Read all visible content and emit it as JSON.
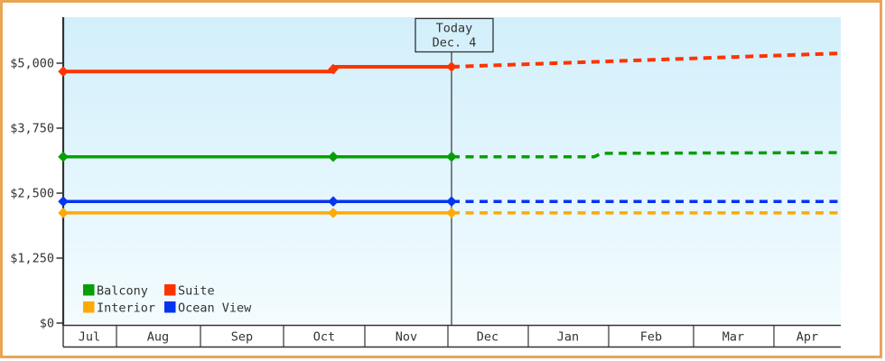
{
  "window": {
    "border_color": "#e9a455",
    "background_color": "#ffffff",
    "plot_gradient_top": "#d2effb",
    "plot_gradient_bottom": "#f3fcff"
  },
  "today_flag": {
    "line1": "Today",
    "line2": "Dec. 4"
  },
  "legend": {
    "items": [
      {
        "label": "Balcony",
        "color": "#079e07"
      },
      {
        "label": "Suite",
        "color": "#ff3300"
      },
      {
        "label": "Interior",
        "color": "#ffa907"
      },
      {
        "label": "Ocean View",
        "color": "#0535f0"
      }
    ]
  },
  "chart_data": {
    "type": "line",
    "title": "",
    "unit": "USD",
    "x_axis": {
      "labels": [
        "Jul",
        "Aug",
        "Sep",
        "Oct",
        "Nov",
        "Dec",
        "Jan",
        "Feb",
        "Mar",
        "Apr"
      ]
    },
    "y_axis": {
      "tick_labels": [
        "$0",
        "$1,250",
        "$2,500",
        "$3,750",
        "$5,000"
      ],
      "tick_values": [
        0,
        1250,
        2500,
        3750,
        5000
      ],
      "min": 0,
      "visible_max": 5890,
      "grid": false
    },
    "today": {
      "label": "Today",
      "date": "Dec. 4",
      "x": 500
    },
    "legend_position": "bottom-left-inside",
    "series": [
      {
        "name": "Suite",
        "color": "#ff3300",
        "stroke_width": 4,
        "actual_points": [
          {
            "x": 70,
            "usd": 4840
          },
          {
            "x": 369,
            "usd": 4840
          },
          {
            "x": 369,
            "usd": 4930
          },
          {
            "x": 500,
            "usd": 4930
          }
        ],
        "forecast_points": [
          {
            "x": 500,
            "usd": 4930
          },
          {
            "x": 930,
            "usd": 5190
          }
        ],
        "markers": [
          {
            "x": 70,
            "usd": 4840
          },
          {
            "x": 369,
            "usd": 4885
          },
          {
            "x": 500,
            "usd": 4930
          }
        ]
      },
      {
        "name": "Balcony",
        "color": "#079e07",
        "stroke_width": 3.5,
        "actual_points": [
          {
            "x": 70,
            "usd": 3200
          },
          {
            "x": 500,
            "usd": 3200
          }
        ],
        "forecast_points": [
          {
            "x": 500,
            "usd": 3200
          },
          {
            "x": 658,
            "usd": 3200
          },
          {
            "x": 666,
            "usd": 3265
          },
          {
            "x": 930,
            "usd": 3280
          }
        ],
        "markers": [
          {
            "x": 70,
            "usd": 3200
          },
          {
            "x": 369,
            "usd": 3200
          },
          {
            "x": 500,
            "usd": 3200
          }
        ]
      },
      {
        "name": "Ocean View",
        "color": "#0535f0",
        "stroke_width": 3.5,
        "actual_points": [
          {
            "x": 70,
            "usd": 2340
          },
          {
            "x": 500,
            "usd": 2340
          }
        ],
        "forecast_points": [
          {
            "x": 500,
            "usd": 2340
          },
          {
            "x": 930,
            "usd": 2340
          }
        ],
        "markers": [
          {
            "x": 70,
            "usd": 2340
          },
          {
            "x": 369,
            "usd": 2340
          },
          {
            "x": 500,
            "usd": 2340
          }
        ]
      },
      {
        "name": "Interior",
        "color": "#ffa907",
        "stroke_width": 3.5,
        "actual_points": [
          {
            "x": 70,
            "usd": 2120
          },
          {
            "x": 500,
            "usd": 2120
          }
        ],
        "forecast_points": [
          {
            "x": 500,
            "usd": 2120
          },
          {
            "x": 930,
            "usd": 2120
          }
        ],
        "markers": [
          {
            "x": 70,
            "usd": 2120
          },
          {
            "x": 369,
            "usd": 2120
          },
          {
            "x": 500,
            "usd": 2120
          }
        ]
      }
    ]
  }
}
